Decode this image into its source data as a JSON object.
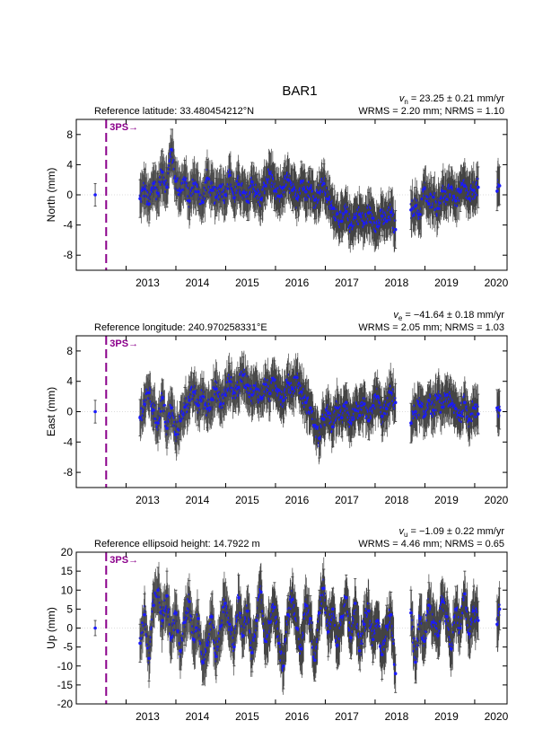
{
  "figure": {
    "station": "BAR1",
    "colors": {
      "points": "#1a1aff",
      "errorbars": "#444444",
      "event": "#8b008b",
      "zero_line": "#bbbbbb"
    }
  },
  "chart_data": [
    {
      "type": "scatter",
      "component": "north",
      "ylabel": "North (mm)",
      "reference_label": "Reference latitude: 33.480454212°N",
      "velocity_label": "v_n = 23.25 ± 0.21 mm/yr",
      "velocity_symbol": "v",
      "velocity_subscript": "n",
      "velocity_value": "= 23.25 ± 0.21 mm/yr",
      "stats_label": "WRMS = 2.20 mm; NRMS = 1.10",
      "xlim": [
        2012.0,
        2020.65
      ],
      "ylim": [
        -10,
        10
      ],
      "yticks": [
        -8,
        -4,
        0,
        4,
        8
      ],
      "xticks": [
        2013,
        2014,
        2015,
        2016,
        2017,
        2018,
        2019,
        2020
      ],
      "grid": false,
      "event": {
        "label": "3PS→",
        "date": 2012.6
      },
      "series": [
        {
          "x": [
            2012.38,
            2013.28,
            2013.37,
            2013.46,
            2013.55,
            2013.64,
            2013.73,
            2013.82,
            2013.91,
            2014.0,
            2014.09,
            2014.18,
            2014.27,
            2014.36,
            2014.45,
            2014.54,
            2014.63,
            2014.72,
            2014.81,
            2014.9,
            2014.99,
            2015.08,
            2015.17,
            2015.26,
            2015.35,
            2015.44,
            2015.53,
            2015.62,
            2015.71,
            2015.8,
            2015.89,
            2015.98,
            2016.07,
            2016.16,
            2016.25,
            2016.34,
            2016.43,
            2016.52,
            2016.61,
            2016.7,
            2016.79,
            2016.88,
            2016.97,
            2017.06,
            2017.15,
            2017.24,
            2017.33,
            2017.42,
            2017.51,
            2017.6,
            2017.69,
            2017.78,
            2017.87,
            2017.96,
            2018.05,
            2018.14,
            2018.23,
            2018.32,
            2018.41,
            2018.72,
            2018.81,
            2018.9,
            2018.99,
            2019.08,
            2019.17,
            2019.26,
            2019.35,
            2019.44,
            2019.53,
            2019.62,
            2019.71,
            2019.8,
            2019.89,
            2019.98,
            2020.07,
            2020.45,
            2020.5
          ],
          "y": [
            0.0,
            -0.5,
            0.8,
            -1.2,
            1.5,
            0.2,
            3.0,
            1.0,
            6.0,
            1.8,
            0.5,
            2.0,
            -0.8,
            1.5,
            0.4,
            -1.0,
            2.2,
            0.6,
            -0.3,
            1.1,
            0.0,
            2.6,
            -0.4,
            1.4,
            0.3,
            -0.9,
            1.7,
            0.2,
            -0.6,
            1.2,
            2.8,
            0.5,
            -0.2,
            1.0,
            2.0,
            0.6,
            -0.5,
            1.8,
            0.4,
            0.9,
            -0.7,
            0.3,
            1.5,
            -0.6,
            -1.8,
            -2.5,
            -3.5,
            -2.2,
            -4.0,
            -3.0,
            -2.6,
            -3.8,
            -2.4,
            -3.1,
            -4.2,
            -2.8,
            -3.5,
            -2.3,
            -4.6,
            -2.0,
            -1.5,
            -2.6,
            0.8,
            -1.2,
            -0.3,
            -1.8,
            0.5,
            -0.6,
            1.0,
            -0.8,
            0.4,
            1.2,
            -0.5,
            0.6,
            1.0,
            0.5,
            1.2
          ],
          "err": [
            1.5,
            2.5,
            2.6,
            2.5,
            2.7,
            2.6,
            2.8,
            2.6,
            2.7,
            2.6,
            2.5,
            2.6,
            2.5,
            2.7,
            2.5,
            2.6,
            2.5,
            2.6,
            2.5,
            2.7,
            2.6,
            2.5,
            2.6,
            2.5,
            2.7,
            2.5,
            2.6,
            2.5,
            2.6,
            2.5,
            2.7,
            2.6,
            2.5,
            2.6,
            2.5,
            2.7,
            2.5,
            2.6,
            2.5,
            2.6,
            2.5,
            2.7,
            2.6,
            2.5,
            2.6,
            2.5,
            2.7,
            2.5,
            2.6,
            2.5,
            2.6,
            2.5,
            2.7,
            2.6,
            2.5,
            2.6,
            2.5,
            2.7,
            2.5,
            2.6,
            2.5,
            2.6,
            2.5,
            2.7,
            2.6,
            2.5,
            2.6,
            2.5,
            2.7,
            2.5,
            2.6,
            2.5,
            2.6,
            2.5,
            2.7,
            2.6,
            2.5
          ]
        }
      ]
    },
    {
      "type": "scatter",
      "component": "east",
      "ylabel": "East (mm)",
      "reference_label": "Reference longitude: 240.970258331°E",
      "velocity_label": "v_e = −41.64 ± 0.18 mm/yr",
      "velocity_symbol": "v",
      "velocity_subscript": "e",
      "velocity_value": "= −41.64 ± 0.18 mm/yr",
      "stats_label": "WRMS = 2.05 mm; NRMS = 1.03",
      "xlim": [
        2012.0,
        2020.65
      ],
      "ylim": [
        -10,
        10
      ],
      "yticks": [
        -8,
        -4,
        0,
        4,
        8
      ],
      "xticks": [
        2013,
        2014,
        2015,
        2016,
        2017,
        2018,
        2019,
        2020
      ],
      "grid": false,
      "event": {
        "label": "3PS→",
        "date": 2012.6
      },
      "series": [
        {
          "x": [
            2012.38,
            2013.28,
            2013.37,
            2013.46,
            2013.55,
            2013.64,
            2013.73,
            2013.82,
            2013.91,
            2014.0,
            2014.09,
            2014.18,
            2014.27,
            2014.36,
            2014.45,
            2014.54,
            2014.63,
            2014.72,
            2014.81,
            2014.9,
            2014.99,
            2015.08,
            2015.17,
            2015.26,
            2015.35,
            2015.44,
            2015.53,
            2015.62,
            2015.71,
            2015.8,
            2015.89,
            2015.98,
            2016.07,
            2016.16,
            2016.25,
            2016.34,
            2016.43,
            2016.52,
            2016.61,
            2016.7,
            2016.79,
            2016.88,
            2016.97,
            2017.06,
            2017.15,
            2017.24,
            2017.33,
            2017.42,
            2017.51,
            2017.6,
            2017.69,
            2017.78,
            2017.87,
            2017.96,
            2018.05,
            2018.14,
            2018.23,
            2018.32,
            2018.41,
            2018.72,
            2018.81,
            2018.9,
            2018.99,
            2019.08,
            2019.17,
            2019.26,
            2019.35,
            2019.44,
            2019.53,
            2019.62,
            2019.71,
            2019.8,
            2019.89,
            2019.98,
            2020.07,
            2020.45,
            2020.5
          ],
          "y": [
            0.0,
            -0.8,
            1.0,
            2.5,
            0.2,
            -1.5,
            1.8,
            -2.2,
            0.5,
            -3.0,
            -1.2,
            0.6,
            1.5,
            2.6,
            0.8,
            2.0,
            0.4,
            1.6,
            3.0,
            1.0,
            2.2,
            4.0,
            2.5,
            3.2,
            4.8,
            3.5,
            2.2,
            3.0,
            1.8,
            3.6,
            2.4,
            4.2,
            2.8,
            1.5,
            3.8,
            3.0,
            4.5,
            2.6,
            1.2,
            0.5,
            -1.8,
            -3.5,
            -1.0,
            -0.2,
            -2.0,
            0.5,
            -0.8,
            1.2,
            -1.5,
            0.2,
            -0.5,
            1.0,
            -1.2,
            0.8,
            2.0,
            -0.6,
            0.4,
            2.5,
            1.2,
            -1.5,
            0.0,
            0.8,
            -0.6,
            1.5,
            0.2,
            1.8,
            0.6,
            2.2,
            1.0,
            0.4,
            -0.5,
            1.2,
            -1.0,
            0.5,
            -0.3,
            0.5,
            0.2
          ],
          "err": [
            1.5,
            2.4,
            2.5,
            2.4,
            2.6,
            2.5,
            2.4,
            2.6,
            2.5,
            2.4,
            2.5,
            2.6,
            2.4,
            2.5,
            2.6,
            2.4,
            2.5,
            2.6,
            2.4,
            2.5,
            2.6,
            2.4,
            2.5,
            2.6,
            2.4,
            2.5,
            2.6,
            2.4,
            2.5,
            2.6,
            2.4,
            2.5,
            2.6,
            2.4,
            2.5,
            2.6,
            2.4,
            2.5,
            2.6,
            2.4,
            2.5,
            2.6,
            2.4,
            2.5,
            2.6,
            2.4,
            2.5,
            2.6,
            2.4,
            2.5,
            2.6,
            2.4,
            2.5,
            2.6,
            2.4,
            2.5,
            2.6,
            2.4,
            2.5,
            2.6,
            2.4,
            2.5,
            2.6,
            2.4,
            2.5,
            2.6,
            2.4,
            2.5,
            2.6,
            2.4,
            2.5,
            2.6,
            2.4,
            2.5,
            2.6,
            2.4,
            2.5
          ]
        }
      ]
    },
    {
      "type": "scatter",
      "component": "up",
      "ylabel": "Up (mm)",
      "reference_label": "Reference ellipsoid height: 14.7922 m",
      "velocity_label": "v_u = −1.09 ± 0.22 mm/yr",
      "velocity_symbol": "v",
      "velocity_subscript": "u",
      "velocity_value": "= −1.09 ± 0.22 mm/yr",
      "stats_label": "WRMS = 4.46 mm; NRMS = 0.65",
      "xlim": [
        2012.0,
        2020.65
      ],
      "ylim": [
        -20,
        20
      ],
      "yticks": [
        -20,
        -15,
        -10,
        -5,
        0,
        5,
        10,
        15,
        20
      ],
      "xticks": [
        2013,
        2014,
        2015,
        2016,
        2017,
        2018,
        2019,
        2020
      ],
      "grid": false,
      "event": {
        "label": "3PS→",
        "date": 2012.6
      },
      "series": [
        {
          "x": [
            2012.38,
            2013.28,
            2013.37,
            2013.46,
            2013.55,
            2013.64,
            2013.73,
            2013.82,
            2013.91,
            2014.0,
            2014.09,
            2014.18,
            2014.27,
            2014.36,
            2014.45,
            2014.54,
            2014.63,
            2014.72,
            2014.81,
            2014.9,
            2014.99,
            2015.08,
            2015.17,
            2015.26,
            2015.35,
            2015.44,
            2015.53,
            2015.62,
            2015.71,
            2015.8,
            2015.89,
            2015.98,
            2016.07,
            2016.16,
            2016.25,
            2016.34,
            2016.43,
            2016.52,
            2016.61,
            2016.7,
            2016.79,
            2016.88,
            2016.97,
            2017.06,
            2017.15,
            2017.24,
            2017.33,
            2017.42,
            2017.51,
            2017.6,
            2017.69,
            2017.78,
            2017.87,
            2017.96,
            2018.05,
            2018.14,
            2018.23,
            2018.32,
            2018.41,
            2018.72,
            2018.81,
            2018.9,
            2018.99,
            2019.08,
            2019.17,
            2019.26,
            2019.35,
            2019.44,
            2019.53,
            2019.62,
            2019.71,
            2019.8,
            2019.89,
            2019.98,
            2020.07,
            2020.45,
            2020.5
          ],
          "y": [
            0.0,
            -4.0,
            3.5,
            -8.0,
            6.0,
            10.0,
            2.0,
            8.5,
            -2.5,
            4.0,
            -6.0,
            1.5,
            7.0,
            -3.0,
            2.5,
            -9.0,
            -4.5,
            3.0,
            -7.5,
            0.5,
            6.5,
            1.0,
            -5.0,
            8.0,
            -2.0,
            4.5,
            -6.5,
            2.0,
            9.5,
            -3.5,
            1.5,
            5.5,
            -4.0,
            -10.0,
            3.5,
            7.5,
            0.0,
            -5.5,
            6.0,
            2.5,
            -8.5,
            4.0,
            10.5,
            -1.0,
            5.0,
            -4.5,
            3.0,
            8.0,
            -2.5,
            6.5,
            -6.0,
            1.0,
            4.5,
            -3.0,
            2.0,
            -7.0,
            0.5,
            3.5,
            -12.0,
            4.0,
            -9.0,
            2.5,
            -3.5,
            6.0,
            1.5,
            -2.0,
            7.0,
            3.0,
            -5.5,
            5.0,
            0.0,
            9.0,
            -1.5,
            4.5,
            2.0,
            1.0,
            5.0
          ],
          "err": [
            2.0,
            5.0,
            5.5,
            6.0,
            5.5,
            6.0,
            5.0,
            6.5,
            5.5,
            6.0,
            5.0,
            6.0,
            5.5,
            6.5,
            5.0,
            6.0,
            5.5,
            6.0,
            5.0,
            6.5,
            5.5,
            6.0,
            5.0,
            6.0,
            5.5,
            6.5,
            5.0,
            6.0,
            5.5,
            6.0,
            5.0,
            6.5,
            5.5,
            6.0,
            5.0,
            6.0,
            5.5,
            6.5,
            5.0,
            6.0,
            5.5,
            6.0,
            5.0,
            6.5,
            5.5,
            6.0,
            5.0,
            6.0,
            5.5,
            6.5,
            5.0,
            6.0,
            5.5,
            6.0,
            5.0,
            6.5,
            5.5,
            6.0,
            5.0,
            6.0,
            5.5,
            6.5,
            5.0,
            6.0,
            5.5,
            6.0,
            5.0,
            6.5,
            5.5,
            6.0,
            5.0,
            6.0,
            5.5,
            6.5,
            5.0,
            6.0,
            5.5
          ]
        }
      ]
    }
  ]
}
